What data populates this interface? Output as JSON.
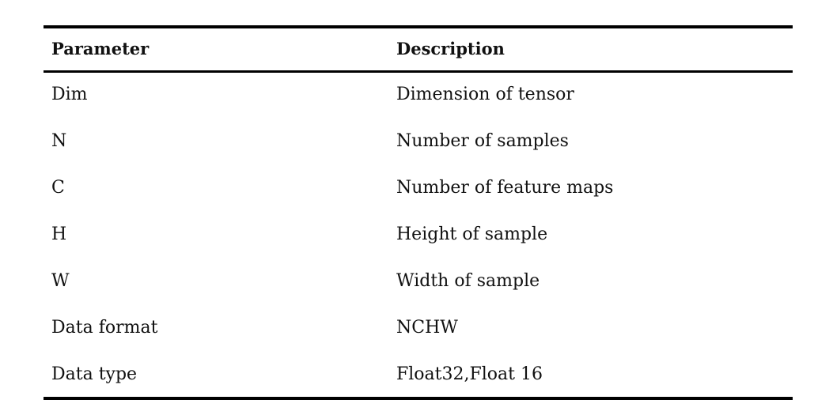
{
  "table": {
    "headers": [
      "Parameter",
      "Description"
    ],
    "rows": [
      [
        "Dim",
        "Dimension of tensor"
      ],
      [
        "N",
        "Number of samples"
      ],
      [
        "C",
        "Number of feature maps"
      ],
      [
        "H",
        "Height of sample"
      ],
      [
        "W",
        "Width of sample"
      ],
      [
        "Data format",
        "NCHW"
      ],
      [
        "Data type",
        "Float32,Float 16"
      ]
    ]
  },
  "colors": {
    "rule": "#000000",
    "text": "#111111",
    "background": "#ffffff"
  }
}
